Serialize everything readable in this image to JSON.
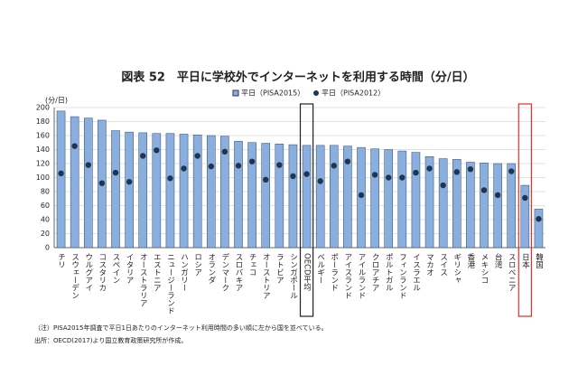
{
  "chart_data": {
    "type": "bar",
    "title": "図表 52　平日に学校外でインターネットを利用する時間（分/日）",
    "y_unit": "(分/日)",
    "categories": [
      "チリ",
      "スウェーデン",
      "ウルグアイ",
      "コスタリカ",
      "スペイン",
      "イタリア",
      "オーストラリア",
      "エストニア",
      "ニュージーランド",
      "ハンガリー",
      "ロシア",
      "オランダ",
      "デンマーク",
      "スロバキア",
      "チェコ",
      "オーストリア",
      "ラトビア",
      "シンガポール",
      "OECD平均",
      "ベルギー",
      "ポーランド",
      "アイスランド",
      "アイルランド",
      "クロアチア",
      "ポルトガル",
      "フィンランド",
      "イスラエル",
      "マカオ",
      "スイス",
      "ギリシャ",
      "香港",
      "メキシコ",
      "台湾",
      "スロベニア",
      "日本",
      "韓国"
    ],
    "series": [
      {
        "name": "平日（PISA2015）",
        "color": "#8aaedd",
        "mark": "bar",
        "values": [
          195,
          187,
          185,
          182,
          167,
          165,
          164,
          163,
          163,
          162,
          161,
          160,
          159,
          152,
          150,
          149,
          148,
          147,
          146,
          146,
          146,
          145,
          143,
          141,
          140,
          138,
          136,
          130,
          127,
          126,
          122,
          121,
          120,
          120,
          89,
          55
        ]
      },
      {
        "name": "平日（PISA2012）",
        "color": "#1f3550",
        "mark": "dot",
        "values": [
          106,
          145,
          118,
          92,
          107,
          94,
          131,
          139,
          99,
          113,
          131,
          116,
          137,
          117,
          123,
          97,
          118,
          102,
          105,
          95,
          117,
          123,
          75,
          104,
          100,
          100,
          107,
          113,
          89,
          108,
          112,
          82,
          75,
          109,
          71,
          41
        ]
      }
    ],
    "ylim": [
      0,
      200
    ],
    "yticks": [
      0,
      20,
      40,
      60,
      80,
      100,
      120,
      140,
      160,
      180,
      200
    ],
    "grid": true,
    "notes": [
      "（注）PISA2015年調査で平日1日あたりのインターネット利用時間の多い順に左から国を並べている。",
      "出所：OECD(2017)より国立教育政策研究所が作成。"
    ]
  }
}
